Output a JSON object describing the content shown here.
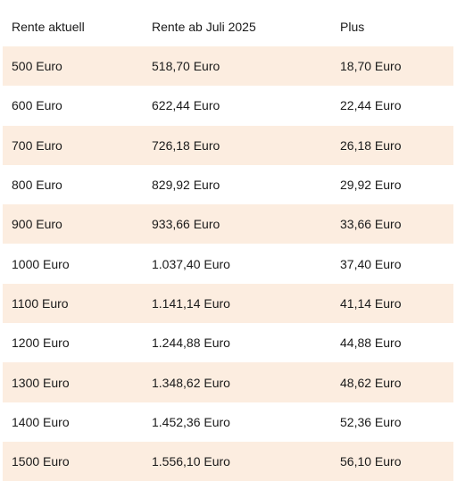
{
  "table": {
    "headers": [
      "Rente aktuell",
      "Rente ab Juli 2025",
      "Plus"
    ],
    "rows": [
      [
        "500 Euro",
        "518,70 Euro",
        "18,70 Euro"
      ],
      [
        "600 Euro",
        "622,44 Euro",
        "22,44 Euro"
      ],
      [
        "700 Euro",
        "726,18 Euro",
        "26,18 Euro"
      ],
      [
        "800 Euro",
        "829,92 Euro",
        "29,92 Euro"
      ],
      [
        "900 Euro",
        "933,66 Euro",
        "33,66 Euro"
      ],
      [
        "1000 Euro",
        "1.037,40 Euro",
        "37,40 Euro"
      ],
      [
        "1100 Euro",
        "1.141,14 Euro",
        "41,14 Euro"
      ],
      [
        "1200 Euro",
        "1.244,88 Euro",
        "44,88 Euro"
      ],
      [
        "1300 Euro",
        "1.348,62 Euro",
        "48,62 Euro"
      ],
      [
        "1400 Euro",
        "1.452,36 Euro",
        "52,36 Euro"
      ],
      [
        "1500 Euro",
        "1.556,10 Euro",
        "56,10 Euro"
      ]
    ],
    "shaded_row_color": "#fcede0"
  }
}
